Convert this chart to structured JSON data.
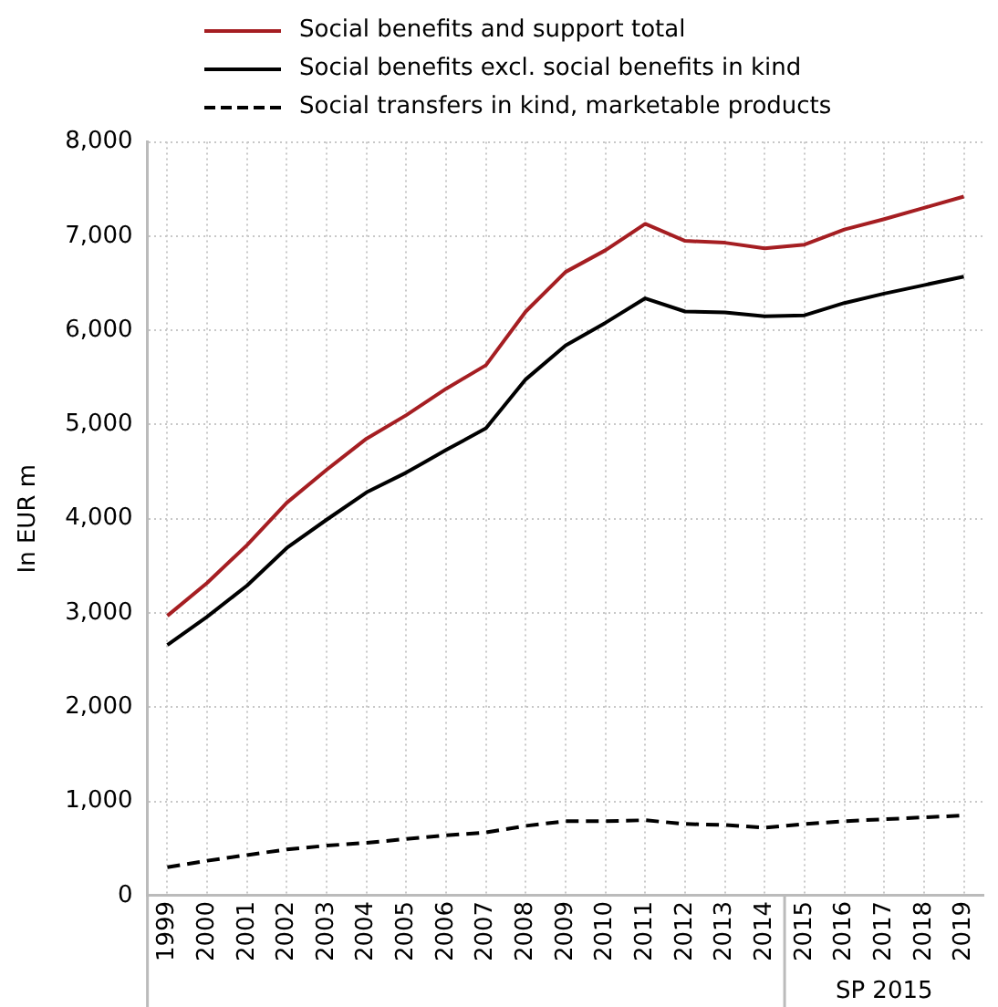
{
  "chart_data": {
    "type": "line",
    "ylabel": "In EUR m",
    "categories": [
      "1999",
      "2000",
      "2001",
      "2002",
      "2003",
      "2004",
      "2005",
      "2006",
      "2007",
      "2008",
      "2009",
      "2010",
      "2011",
      "2012",
      "2013",
      "2014",
      "2015",
      "2016",
      "2017",
      "2018",
      "2019"
    ],
    "series": [
      {
        "name": "Social benefits and support total",
        "color": "#a51e22",
        "line_style": "solid",
        "values": [
          2970,
          3320,
          3720,
          4170,
          4520,
          4850,
          5100,
          5380,
          5630,
          6200,
          6620,
          6850,
          7130,
          6950,
          6930,
          6870,
          6910,
          7070,
          7180,
          7300,
          7420
        ]
      },
      {
        "name": "Social benefits excl. social benefits in kind",
        "color": "#000000",
        "line_style": "solid",
        "values": [
          2660,
          2960,
          3290,
          3690,
          3990,
          4280,
          4490,
          4730,
          4960,
          5480,
          5840,
          6080,
          6340,
          6200,
          6190,
          6150,
          6160,
          6290,
          6390,
          6480,
          6570
        ]
      },
      {
        "name": "Social transfers in kind, marketable products",
        "color": "#000000",
        "line_style": "dashed",
        "values": [
          300,
          370,
          430,
          490,
          530,
          560,
          600,
          640,
          670,
          740,
          790,
          790,
          800,
          760,
          750,
          720,
          760,
          790,
          810,
          830,
          850
        ]
      }
    ],
    "ylim": [
      0,
      8000
    ],
    "yticks": [
      0,
      {
        "value": 1000,
        "label": "1,000"
      },
      {
        "value": 2000,
        "label": "2,000"
      },
      {
        "value": 3000,
        "label": "3,000"
      },
      {
        "value": 4000,
        "label": "4,000"
      },
      {
        "value": 5000,
        "label": "5,000"
      },
      {
        "value": 6000,
        "label": "6,000"
      },
      {
        "value": 7000,
        "label": "7,000"
      },
      {
        "value": 8000,
        "label": "8,000"
      }
    ],
    "grid": true,
    "legend": "top",
    "marker": "none",
    "annotations": [
      "SP 2015"
    ]
  }
}
